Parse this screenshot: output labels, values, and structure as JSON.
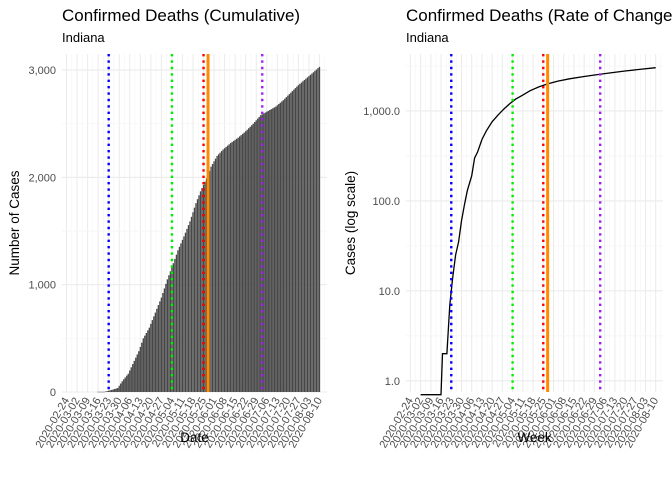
{
  "chart_data": [
    {
      "type": "bar",
      "title": "Confirmed Deaths (Cumulative)",
      "subtitle": "Indiana",
      "xlabel": "Date",
      "ylabel": "Number of Cases",
      "ylim": [
        0,
        3150
      ],
      "y_ticks": [
        0,
        1000,
        2000,
        3000
      ],
      "y_tick_labels": [
        "0",
        "1,000",
        "2,000",
        "3,000"
      ],
      "x_tick_labels": [
        "2020-02-24",
        "2020-03-02",
        "2020-03-09",
        "2020-03-16",
        "2020-03-23",
        "2020-03-30",
        "2020-04-06",
        "2020-04-13",
        "2020-04-20",
        "2020-04-27",
        "2020-05-04",
        "2020-05-11",
        "2020-05-18",
        "2020-05-25",
        "2020-06-01",
        "2020-06-08",
        "2020-06-15",
        "2020-06-22",
        "2020-06-29",
        "2020-07-06",
        "2020-07-13",
        "2020-07-20",
        "2020-07-27",
        "2020-08-03",
        "2020-08-10"
      ],
      "x_start": "2020-02-21",
      "x_end": "2020-08-15",
      "grid": true,
      "series": [
        {
          "points": [
            [
              "2020-03-16",
              2
            ],
            [
              "2020-03-20",
              2
            ],
            [
              "2020-03-23",
              12
            ],
            [
              "2020-03-26",
              24
            ],
            [
              "2020-03-29",
              37
            ],
            [
              "2020-04-01",
              100
            ],
            [
              "2020-04-05",
              170
            ],
            [
              "2020-04-08",
              260
            ],
            [
              "2020-04-12",
              380
            ],
            [
              "2020-04-15",
              500
            ],
            [
              "2020-04-19",
              600
            ],
            [
              "2020-04-23",
              740
            ],
            [
              "2020-04-27",
              880
            ],
            [
              "2020-05-01",
              1050
            ],
            [
              "2020-05-05",
              1200
            ],
            [
              "2020-05-08",
              1320
            ],
            [
              "2020-05-12",
              1450
            ],
            [
              "2020-05-16",
              1590
            ],
            [
              "2020-05-20",
              1760
            ],
            [
              "2020-05-23",
              1870
            ],
            [
              "2020-05-27",
              1990
            ],
            [
              "2020-05-28",
              2020
            ],
            [
              "2020-05-30",
              2100
            ],
            [
              "2020-06-03",
              2200
            ],
            [
              "2020-06-07",
              2260
            ],
            [
              "2020-06-12",
              2320
            ],
            [
              "2020-06-17",
              2370
            ],
            [
              "2020-06-22",
              2430
            ],
            [
              "2020-06-27",
              2500
            ],
            [
              "2020-07-02",
              2580
            ],
            [
              "2020-07-07",
              2620
            ],
            [
              "2020-07-12",
              2660
            ],
            [
              "2020-07-17",
              2720
            ],
            [
              "2020-07-22",
              2790
            ],
            [
              "2020-07-27",
              2860
            ],
            [
              "2020-08-01",
              2920
            ],
            [
              "2020-08-06",
              2980
            ],
            [
              "2020-08-10",
              3030
            ]
          ]
        }
      ],
      "vlines": [
        {
          "x": "2020-03-23",
          "color": "#0000ff",
          "style": "dotted"
        },
        {
          "x": "2020-05-04",
          "color": "#00ee00",
          "style": "dotted"
        },
        {
          "x": "2020-05-25",
          "color": "#ff0000",
          "style": "dotted"
        },
        {
          "x": "2020-05-28",
          "color": "#ff8c00",
          "style": "solid"
        },
        {
          "x": "2020-07-03",
          "color": "#a020f0",
          "style": "dotted"
        }
      ]
    },
    {
      "type": "line",
      "title": "Confirmed Deaths (Rate of Change)",
      "subtitle": "Indiana",
      "xlabel": "Week",
      "ylabel": "Cases (log scale)",
      "y_scale": "log",
      "ylim": [
        0.75,
        4300
      ],
      "y_ticks": [
        1,
        10,
        100,
        1000
      ],
      "y_tick_labels": [
        "1.0",
        "10.0",
        "100.0",
        "1,000.0"
      ],
      "x_tick_labels": [
        "2020-02-24",
        "2020-03-02",
        "2020-03-09",
        "2020-03-16",
        "2020-03-23",
        "2020-03-30",
        "2020-04-06",
        "2020-04-13",
        "2020-04-20",
        "2020-04-27",
        "2020-05-04",
        "2020-05-11",
        "2020-05-18",
        "2020-05-25",
        "2020-06-01",
        "2020-06-08",
        "2020-06-15",
        "2020-06-22",
        "2020-06-29",
        "2020-07-06",
        "2020-07-13",
        "2020-07-20",
        "2020-07-27",
        "2020-08-03",
        "2020-08-10"
      ],
      "x_start": "2020-02-21",
      "x_end": "2020-08-15",
      "grid": true,
      "series": [
        {
          "points": [
            [
              "2020-03-02",
              0.7
            ],
            [
              "2020-03-16",
              0.7
            ],
            [
              "2020-03-17",
              2
            ],
            [
              "2020-03-20",
              2
            ],
            [
              "2020-03-22",
              7
            ],
            [
              "2020-03-24",
              14
            ],
            [
              "2020-03-26",
              25
            ],
            [
              "2020-03-28",
              35
            ],
            [
              "2020-03-30",
              60
            ],
            [
              "2020-04-01",
              90
            ],
            [
              "2020-04-03",
              130
            ],
            [
              "2020-04-06",
              190
            ],
            [
              "2020-04-08",
              300
            ],
            [
              "2020-04-10",
              350
            ],
            [
              "2020-04-13",
              480
            ],
            [
              "2020-04-16",
              600
            ],
            [
              "2020-04-20",
              760
            ],
            [
              "2020-04-24",
              900
            ],
            [
              "2020-04-28",
              1050
            ],
            [
              "2020-05-02",
              1200
            ],
            [
              "2020-05-06",
              1350
            ],
            [
              "2020-05-11",
              1500
            ],
            [
              "2020-05-16",
              1680
            ],
            [
              "2020-05-22",
              1850
            ],
            [
              "2020-05-28",
              2000
            ],
            [
              "2020-06-04",
              2150
            ],
            [
              "2020-06-12",
              2280
            ],
            [
              "2020-06-22",
              2420
            ],
            [
              "2020-07-01",
              2540
            ],
            [
              "2020-07-10",
              2650
            ],
            [
              "2020-07-20",
              2780
            ],
            [
              "2020-07-30",
              2900
            ],
            [
              "2020-08-10",
              3030
            ]
          ]
        }
      ],
      "vlines": [
        {
          "x": "2020-03-23",
          "color": "#0000ff",
          "style": "dotted"
        },
        {
          "x": "2020-05-04",
          "color": "#00ee00",
          "style": "dotted"
        },
        {
          "x": "2020-05-25",
          "color": "#ff0000",
          "style": "dotted"
        },
        {
          "x": "2020-05-28",
          "color": "#ff8c00",
          "style": "solid"
        },
        {
          "x": "2020-07-03",
          "color": "#a020f0",
          "style": "dotted"
        }
      ]
    }
  ],
  "colors": {
    "bar_fill": "#474747",
    "line": "#000000",
    "grid_major": "#ebebeb",
    "grid_minor": "#f5f5f5",
    "tick_text": "#4d4d4d"
  }
}
